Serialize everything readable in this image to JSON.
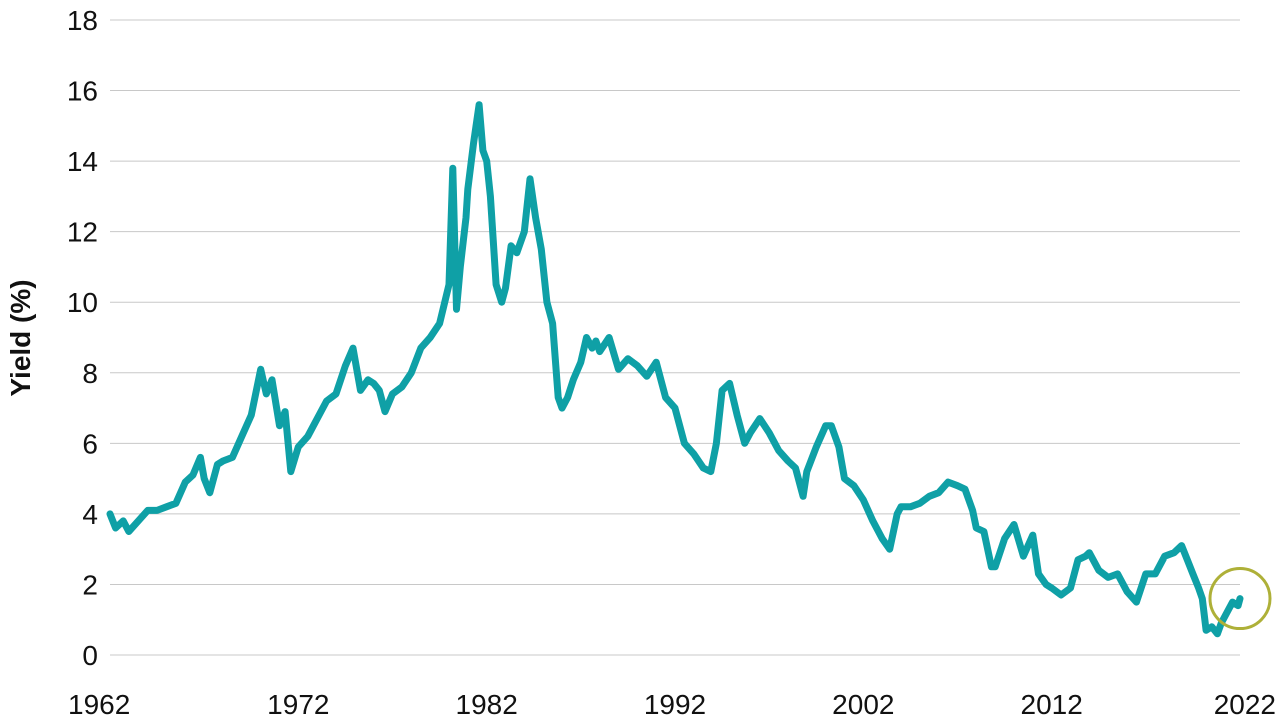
{
  "chart_data": {
    "type": "line",
    "title": "",
    "xlabel": "",
    "ylabel": "Yield (%)",
    "xlim": [
      1962,
      2022
    ],
    "ylim": [
      0,
      18
    ],
    "x_ticks": [
      "1962",
      "1972",
      "1982",
      "1992",
      "2002",
      "2012",
      "2022"
    ],
    "y_ticks": [
      "0",
      "2",
      "4",
      "6",
      "8",
      "10",
      "12",
      "14",
      "16",
      "18"
    ],
    "grid": "horizontal",
    "line_color": "#0fa0a6",
    "highlight_color": "#aeb038",
    "highlight": {
      "x": 2022,
      "y": 1.6
    },
    "series": [
      {
        "x": [
          1962,
          1962.3,
          1962.7,
          1963,
          1963.5,
          1964,
          1964.5,
          1965,
          1965.5,
          1966,
          1966.4,
          1966.8,
          1967,
          1967.3,
          1967.7,
          1968,
          1968.5,
          1969,
          1969.5,
          1970,
          1970.3,
          1970.6,
          1971,
          1971.3,
          1971.6,
          1972,
          1972.5,
          1973,
          1973.5,
          1974,
          1974.5,
          1974.9,
          1975.3,
          1975.7,
          1976,
          1976.3,
          1976.6,
          1977,
          1977.5,
          1978,
          1978.5,
          1979,
          1979.5,
          1980,
          1980.2,
          1980.4,
          1980.6,
          1980.9,
          1981,
          1981.3,
          1981.6,
          1981.8,
          1982,
          1982.2,
          1982.5,
          1982.8,
          1983,
          1983.3,
          1983.6,
          1984,
          1984.3,
          1984.6,
          1984.9,
          1985.2,
          1985.5,
          1985.8,
          1986,
          1986.3,
          1986.6,
          1987,
          1987.3,
          1987.6,
          1987.8,
          1988,
          1988.5,
          1989,
          1989.5,
          1990,
          1990.5,
          1991,
          1991.5,
          1992,
          1992.5,
          1993,
          1993.5,
          1993.9,
          1994.2,
          1994.5,
          1994.9,
          1995.3,
          1995.7,
          1996,
          1996.5,
          1997,
          1997.5,
          1998,
          1998.4,
          1998.8,
          1999,
          1999.5,
          2000,
          2000.3,
          2000.7,
          2001,
          2001.5,
          2002,
          2002.5,
          2003,
          2003.4,
          2003.8,
          2004,
          2004.5,
          2005,
          2005.5,
          2006,
          2006.5,
          2007,
          2007.4,
          2007.8,
          2008,
          2008.4,
          2008.8,
          2009,
          2009.5,
          2010,
          2010.5,
          2011,
          2011.3,
          2011.7,
          2012,
          2012.5,
          2013,
          2013.4,
          2013.8,
          2014,
          2014.5,
          2015,
          2015.5,
          2016,
          2016.5,
          2017,
          2017.5,
          2018,
          2018.5,
          2018.9,
          2019.2,
          2019.5,
          2019.8,
          2020,
          2020.2,
          2020.5,
          2020.8,
          2021,
          2021.3,
          2021.6,
          2021.9,
          2022
        ],
        "values": [
          4.0,
          3.6,
          3.8,
          3.5,
          3.8,
          4.1,
          4.1,
          4.2,
          4.3,
          4.9,
          5.1,
          5.6,
          5.0,
          4.6,
          5.4,
          5.5,
          5.6,
          6.2,
          6.8,
          8.1,
          7.4,
          7.8,
          6.5,
          6.9,
          5.2,
          5.9,
          6.2,
          6.7,
          7.2,
          7.4,
          8.2,
          8.7,
          7.5,
          7.8,
          7.7,
          7.5,
          6.9,
          7.4,
          7.6,
          8.0,
          8.7,
          9.0,
          9.4,
          10.5,
          13.8,
          9.8,
          11.0,
          12.4,
          13.2,
          14.5,
          15.6,
          14.3,
          14.0,
          13.0,
          10.5,
          10.0,
          10.4,
          11.6,
          11.4,
          12.0,
          13.5,
          12.4,
          11.5,
          10.0,
          9.4,
          7.3,
          7.0,
          7.3,
          7.8,
          8.3,
          9.0,
          8.7,
          8.9,
          8.6,
          9.0,
          8.1,
          8.4,
          8.2,
          7.9,
          8.3,
          7.3,
          7.0,
          6.0,
          5.7,
          5.3,
          5.2,
          6.0,
          7.5,
          7.7,
          6.8,
          6.0,
          6.3,
          6.7,
          6.3,
          5.8,
          5.5,
          5.3,
          4.5,
          5.2,
          5.9,
          6.5,
          6.5,
          5.9,
          5.0,
          4.8,
          4.4,
          3.8,
          3.3,
          3.0,
          4.0,
          4.2,
          4.2,
          4.3,
          4.5,
          4.6,
          4.9,
          4.8,
          4.7,
          4.1,
          3.6,
          3.5,
          2.5,
          2.5,
          3.3,
          3.7,
          2.8,
          3.4,
          2.3,
          2.0,
          1.9,
          1.7,
          1.9,
          2.7,
          2.8,
          2.9,
          2.4,
          2.2,
          2.3,
          1.8,
          1.5,
          2.3,
          2.3,
          2.8,
          2.9,
          3.1,
          2.7,
          2.3,
          1.9,
          1.6,
          0.7,
          0.8,
          0.6,
          0.9,
          1.2,
          1.5,
          1.4,
          1.6
        ]
      }
    ]
  }
}
